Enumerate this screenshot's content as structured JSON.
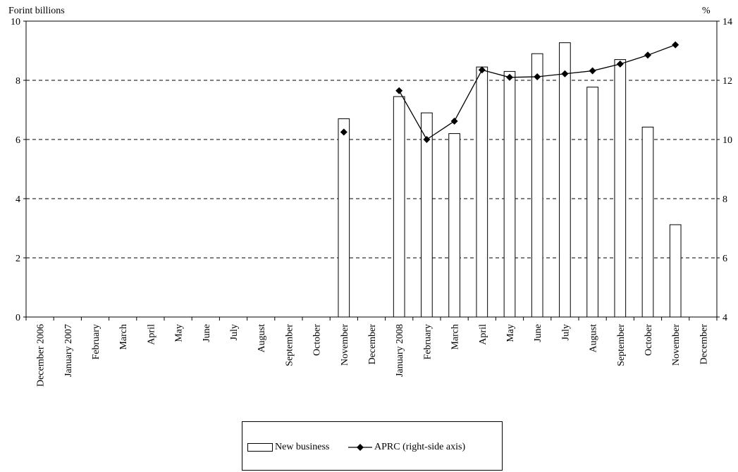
{
  "chart_data": {
    "type": "bar",
    "left_axis_unit": "Forint billions",
    "right_axis_unit": "%",
    "categories": [
      "December 2006",
      "January 2007",
      "February",
      "March",
      "April",
      "May",
      "June",
      "July",
      "August",
      "September",
      "October",
      "November",
      "December",
      "January 2008",
      "February",
      "March",
      "April",
      "May",
      "June",
      "July",
      "August",
      "September",
      "October",
      "November",
      "December"
    ],
    "series": [
      {
        "name": "New business",
        "type": "bar",
        "axis": "left",
        "values": [
          null,
          null,
          null,
          null,
          null,
          null,
          null,
          null,
          null,
          null,
          null,
          6.7,
          null,
          7.45,
          6.9,
          6.2,
          8.45,
          8.3,
          8.9,
          9.27,
          7.77,
          8.7,
          6.42,
          3.12,
          null
        ]
      },
      {
        "name": "APRC (right-side axis)",
        "type": "line",
        "axis": "right",
        "marker": "diamond",
        "values": [
          null,
          null,
          null,
          null,
          null,
          null,
          null,
          null,
          null,
          null,
          null,
          10.25,
          null,
          11.65,
          10.0,
          10.62,
          12.35,
          12.1,
          12.12,
          12.22,
          12.32,
          12.55,
          12.85,
          13.2,
          null
        ]
      }
    ],
    "ylim_left": [
      0,
      10
    ],
    "yticks_left": [
      "0",
      "2",
      "4",
      "6",
      "8",
      "10"
    ],
    "ylim_right": [
      4,
      14
    ],
    "yticks_right": [
      "4",
      "6",
      "8",
      "10",
      "12",
      "14"
    ],
    "grid": "horizontal dashed",
    "legend_position": "bottom"
  }
}
